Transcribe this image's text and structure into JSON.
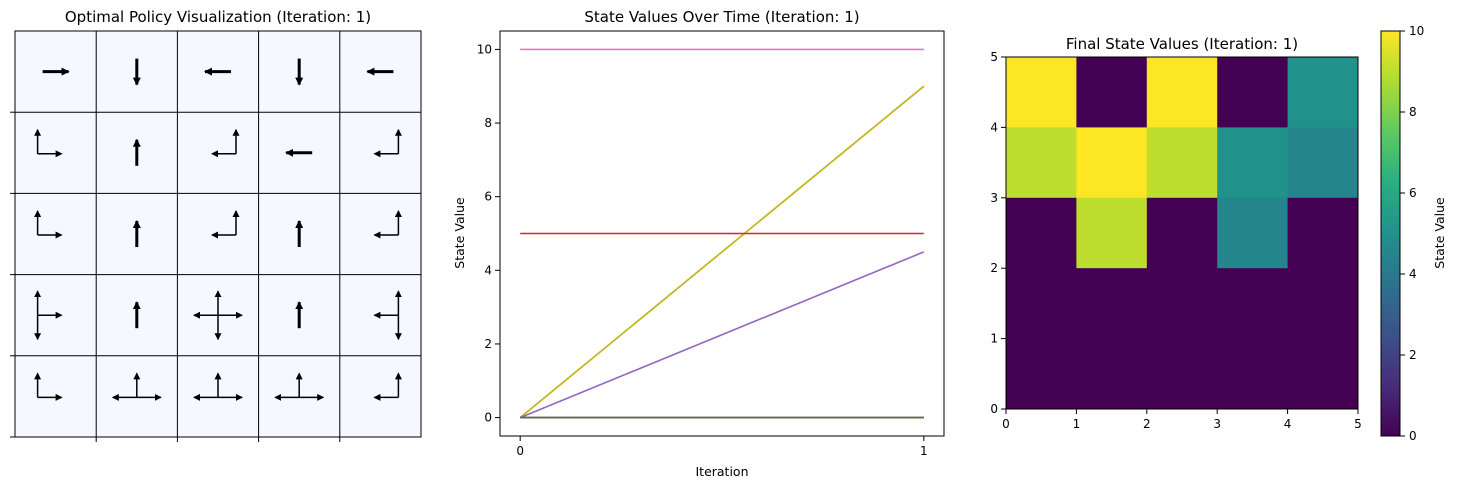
{
  "panels": {
    "policy": {
      "title": "Optimal Policy Visualization (Iteration: 1)"
    },
    "values": {
      "title": "State Values Over Time (Iteration: 1)"
    },
    "heatmap": {
      "title": "Final State Values (Iteration: 1)"
    }
  },
  "colors": {
    "grid_bg": "#f5f8ff",
    "series": [
      "#e377c2",
      "#ff7f0e",
      "#bcbd22",
      "#d62728",
      "#9467bd",
      "#1f77b4",
      "#2ca02c",
      "#8c564b",
      "#7f7f7f",
      "#17becf"
    ]
  },
  "chart_data": [
    {
      "type": "heatmap",
      "name_hint": "policy-grid",
      "rows": 5,
      "cols": 5,
      "policy": [
        [
          [
            "right"
          ],
          [
            "down"
          ],
          [
            "left"
          ],
          [
            "down"
          ],
          [
            "left"
          ]
        ],
        [
          [
            "up",
            "right"
          ],
          [
            "up"
          ],
          [
            "up",
            "left"
          ],
          [
            "left"
          ],
          [
            "up",
            "left"
          ]
        ],
        [
          [
            "up",
            "right"
          ],
          [
            "up"
          ],
          [
            "up",
            "left"
          ],
          [
            "up"
          ],
          [
            "up",
            "left"
          ]
        ],
        [
          [
            "up",
            "down",
            "right"
          ],
          [
            "up"
          ],
          [
            "up",
            "down",
            "left",
            "right"
          ],
          [
            "up"
          ],
          [
            "up",
            "down",
            "left"
          ]
        ],
        [
          [
            "up",
            "right"
          ],
          [
            "up",
            "left",
            "right"
          ],
          [
            "up",
            "left",
            "right"
          ],
          [
            "up",
            "left",
            "right"
          ],
          [
            "up",
            "left"
          ]
        ]
      ]
    },
    {
      "type": "line",
      "title": "State Values Over Time (Iteration: 1)",
      "xlabel": "Iteration",
      "ylabel": "State Value",
      "x": [
        0,
        1
      ],
      "xticks": [
        "0",
        "1"
      ],
      "yticks": [
        0,
        2,
        4,
        6,
        8,
        10
      ],
      "xlim": [
        -0.05,
        1.05
      ],
      "ylim": [
        -0.5,
        10.5
      ],
      "grid": false,
      "series": [
        {
          "values": [
            10,
            10
          ]
        },
        {
          "values": [
            0,
            9
          ]
        },
        {
          "values": [
            0,
            9
          ]
        },
        {
          "values": [
            5,
            5
          ]
        },
        {
          "values": [
            0,
            4.5
          ]
        },
        {
          "values": [
            0,
            0
          ]
        },
        {
          "values": [
            0,
            0
          ]
        },
        {
          "values": [
            0,
            0
          ]
        }
      ]
    },
    {
      "type": "heatmap",
      "title": "Final State Values (Iteration: 1)",
      "colorbar_label": "State Value",
      "xticks": [
        0,
        1,
        2,
        3,
        4,
        5
      ],
      "yticks": [
        0,
        1,
        2,
        3,
        4,
        5
      ],
      "colorbar_ticks": [
        0,
        2,
        4,
        6,
        8,
        10
      ],
      "vmin": 0,
      "vmax": 10,
      "values_top_to_bottom": [
        [
          10,
          0,
          10,
          0,
          5
        ],
        [
          9,
          10,
          9,
          5,
          4.5
        ],
        [
          0,
          9,
          0,
          4.5,
          0
        ],
        [
          0,
          0,
          0,
          0,
          0
        ],
        [
          0,
          0,
          0,
          0,
          0
        ]
      ]
    }
  ]
}
